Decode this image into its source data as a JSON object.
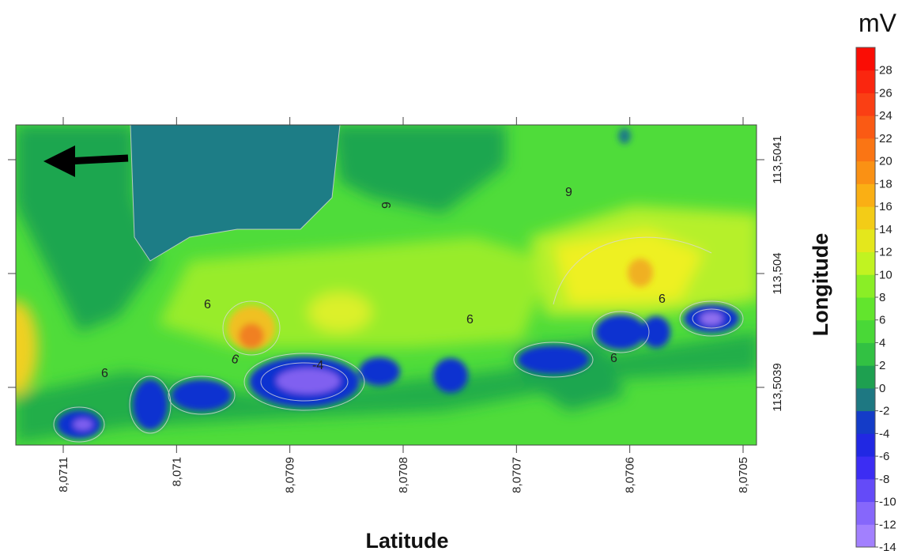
{
  "chart_data": {
    "type": "heatmap",
    "title": "",
    "xlabel": "Latitude",
    "ylabel": "Longitude",
    "x_ticks": [
      "8,0711",
      "8,071",
      "8,0709",
      "8,0708",
      "8,0707",
      "8,0706",
      "8,0705"
    ],
    "y_ticks": [
      "113,5041",
      "113,504",
      "113,5039"
    ],
    "colorbar": {
      "unit": "mV",
      "min": -14,
      "max": 30,
      "step": 2,
      "tick_labels": [
        "28",
        "26",
        "24",
        "22",
        "20",
        "18",
        "16",
        "14",
        "12",
        "10",
        "8",
        "6",
        "4",
        "2",
        "0",
        "-2",
        "-4",
        "-6",
        "-8",
        "-10",
        "-12",
        "-14"
      ]
    },
    "contour_labels": [
      "9",
      "9",
      "6",
      "6",
      "6",
      "9",
      "6",
      "6",
      "-4"
    ],
    "annotations": [
      "direction-arrow-left"
    ],
    "grid": false,
    "legend_position": "right"
  }
}
